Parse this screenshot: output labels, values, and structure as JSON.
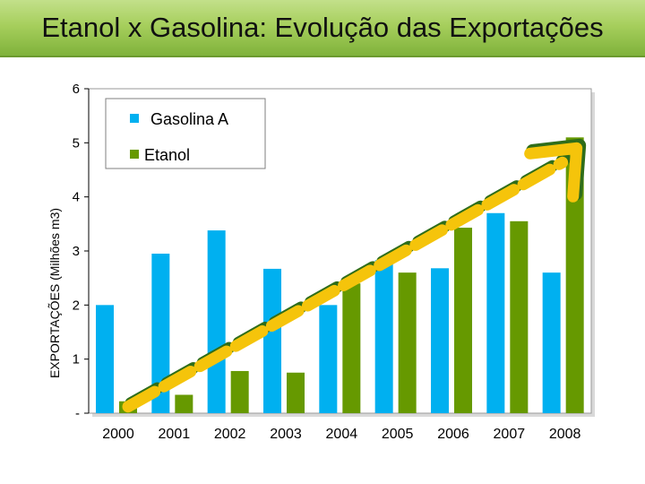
{
  "header": {
    "title": "Etanol x Gasolina: Evolução das Exportações"
  },
  "chart_data": {
    "type": "bar",
    "title": "Etanol x Gasolina: Evolução das Exportações",
    "xlabel": "",
    "ylabel": "EXPORTAÇÕES (Milhões m3)",
    "ylim": [
      0,
      6
    ],
    "yticks": [
      {
        "value": 0,
        "label": "-"
      },
      {
        "value": 1,
        "label": "1"
      },
      {
        "value": 2,
        "label": "2"
      },
      {
        "value": 3,
        "label": "3"
      },
      {
        "value": 4,
        "label": "4"
      },
      {
        "value": 5,
        "label": "5"
      },
      {
        "value": 6,
        "label": "6"
      }
    ],
    "categories": [
      "2000",
      "2001",
      "2002",
      "2003",
      "2004",
      "2005",
      "2006",
      "2007",
      "2008"
    ],
    "series": [
      {
        "name": "Gasolina A",
        "color": "#00b0f0",
        "values": [
          2.0,
          2.95,
          3.38,
          2.67,
          2.0,
          2.83,
          2.68,
          3.7,
          2.6
        ]
      },
      {
        "name": "Etanol",
        "color": "#669900",
        "values": [
          0.22,
          0.34,
          0.78,
          0.75,
          2.4,
          2.6,
          3.43,
          3.55,
          5.1
        ]
      }
    ],
    "legend": "top-left",
    "grid": false,
    "trend_arrow": {
      "from_category": "2000",
      "to_category": "2008"
    }
  }
}
